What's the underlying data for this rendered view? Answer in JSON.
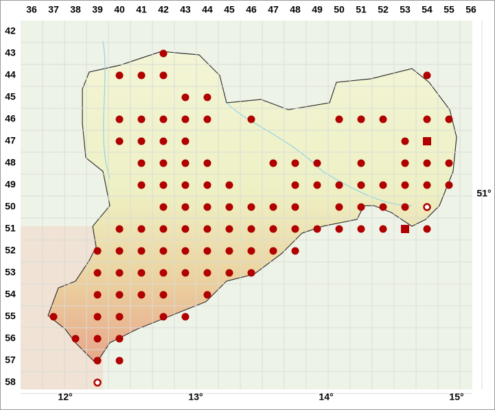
{
  "columns": [
    36,
    37,
    38,
    39,
    40,
    41,
    42,
    43,
    44,
    45,
    46,
    47,
    48,
    49,
    50,
    51,
    52,
    53,
    54,
    55,
    56
  ],
  "rows": [
    42,
    43,
    44,
    45,
    46,
    47,
    48,
    49,
    50,
    51,
    52,
    53,
    54,
    55,
    56,
    57,
    58
  ],
  "longitudes": [
    "12°",
    "13°",
    "14°",
    "15°"
  ],
  "latitude": "51°",
  "records": [
    {
      "row": 43,
      "dot": [
        42
      ]
    },
    {
      "row": 44,
      "dot": [
        40,
        41,
        42,
        54
      ]
    },
    {
      "row": 45,
      "dot": [
        43,
        44
      ]
    },
    {
      "row": 46,
      "dot": [
        40,
        41,
        42,
        43,
        44,
        46,
        50,
        51,
        52,
        54,
        55
      ]
    },
    {
      "row": 47,
      "dot": [
        40,
        41,
        42,
        43,
        53
      ],
      "square": [
        54
      ]
    },
    {
      "row": 48,
      "dot": [
        41,
        42,
        43,
        44,
        47,
        48,
        49,
        51,
        53,
        54,
        55
      ]
    },
    {
      "row": 49,
      "dot": [
        41,
        42,
        43,
        44,
        45,
        48,
        49,
        50,
        51,
        52,
        53,
        54,
        55
      ]
    },
    {
      "row": 50,
      "dot": [
        42,
        43,
        44,
        45,
        46,
        47,
        48,
        50,
        51,
        52,
        53
      ],
      "open": [
        54
      ]
    },
    {
      "row": 51,
      "dot": [
        40,
        41,
        42,
        43,
        44,
        45,
        46,
        47,
        48,
        49,
        50,
        51,
        52,
        54
      ],
      "square": [
        53
      ]
    },
    {
      "row": 52,
      "dot": [
        39,
        40,
        41,
        42,
        43,
        44,
        45,
        46,
        47,
        48
      ]
    },
    {
      "row": 53,
      "dot": [
        39,
        40,
        41,
        42,
        43,
        44,
        45,
        46
      ]
    },
    {
      "row": 54,
      "dot": [
        39,
        40,
        41,
        42,
        44
      ]
    },
    {
      "row": 55,
      "dot": [
        37,
        39,
        40,
        42,
        43
      ]
    },
    {
      "row": 56,
      "dot": [
        38,
        39,
        40
      ]
    },
    {
      "row": 57,
      "dot": [
        39,
        40
      ]
    },
    {
      "row": 58,
      "open": [
        39
      ]
    }
  ]
}
